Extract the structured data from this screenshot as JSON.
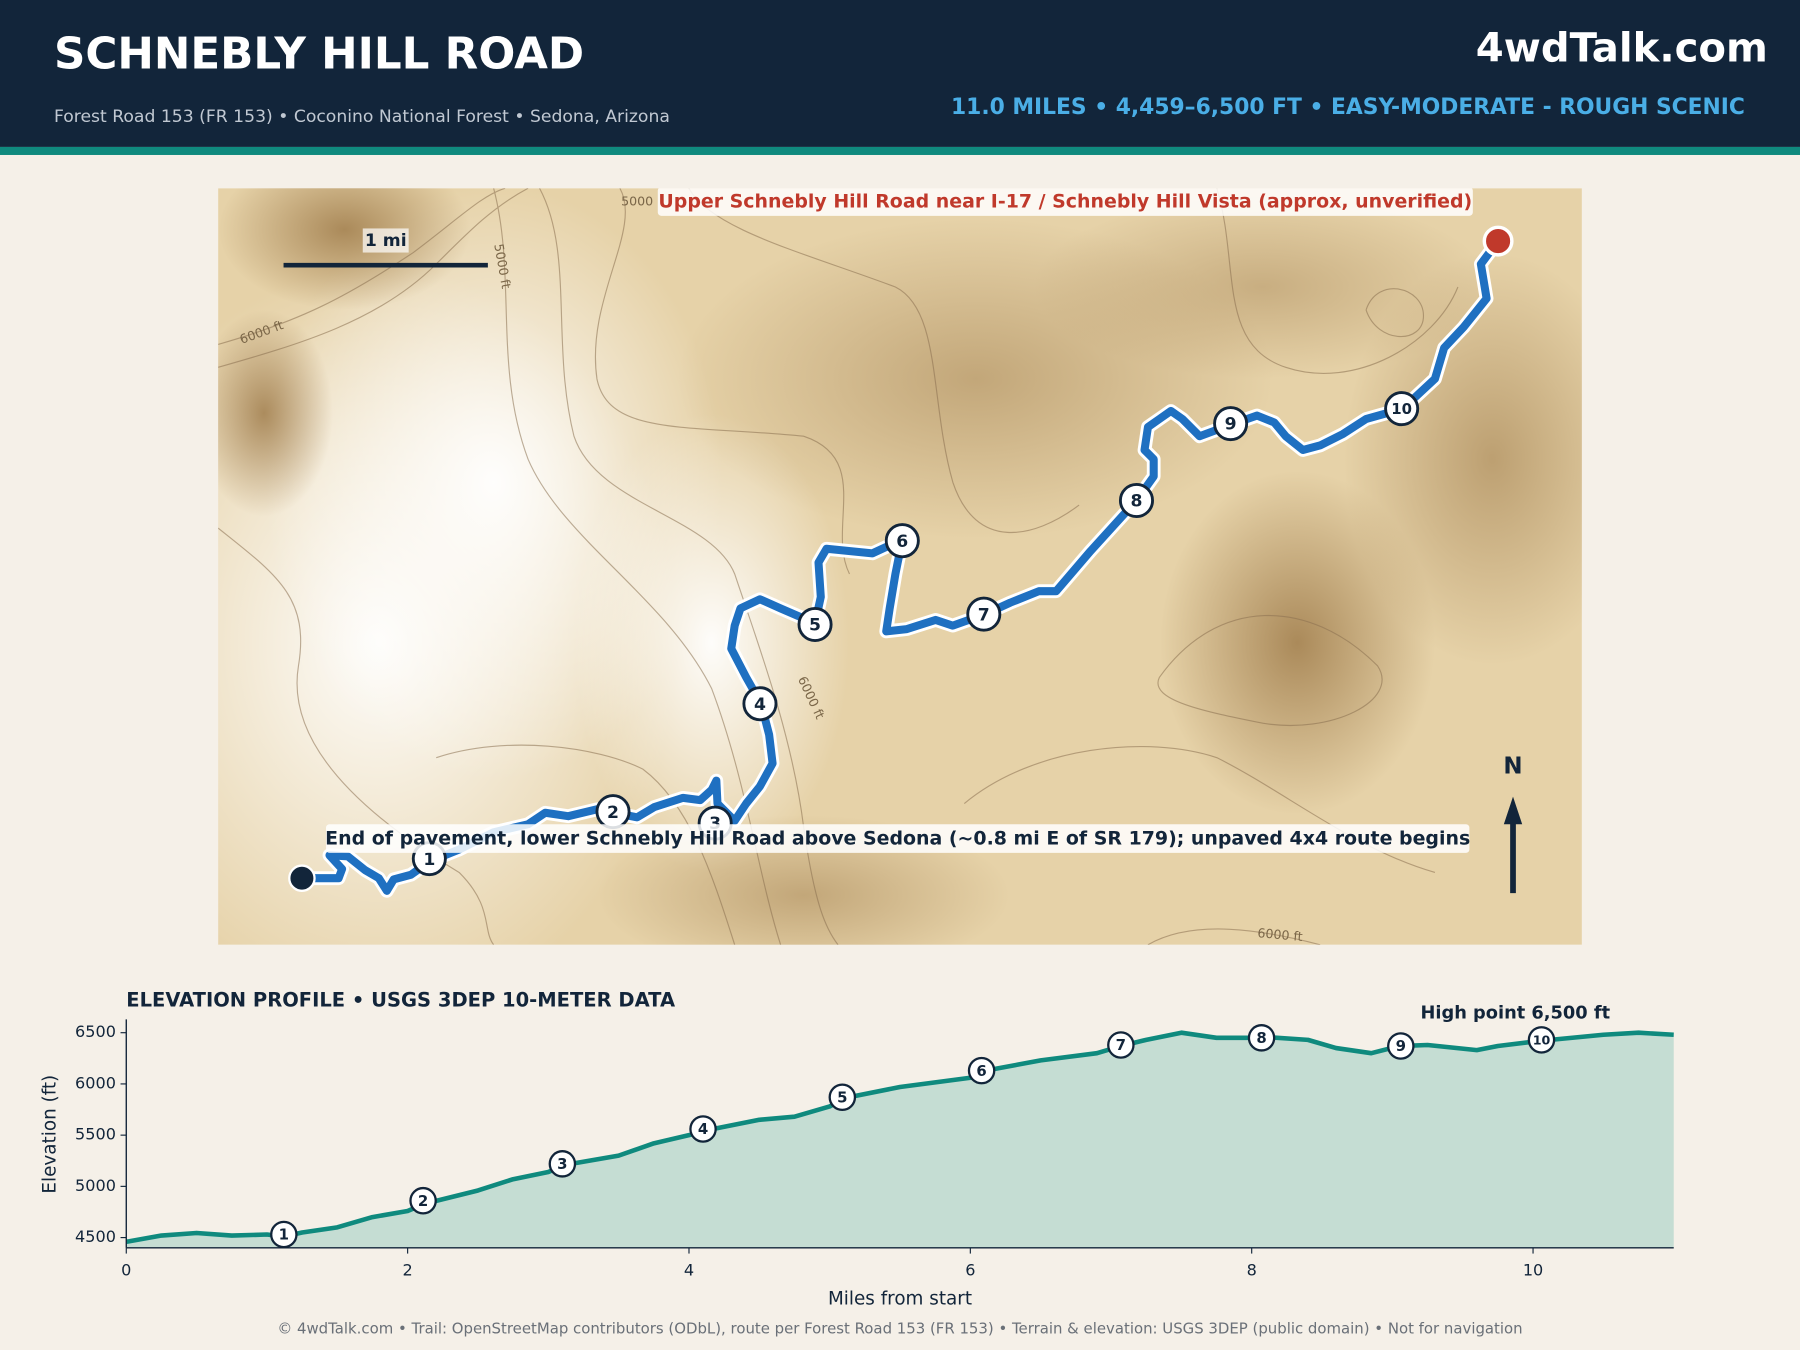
{
  "header": {
    "title": "SCHNEBLY HILL ROAD",
    "subtitle": "Forest Road 153 (FR 153)  •  Coconino National Forest  •  Sedona, Arizona",
    "brand": "4wdTalk.com",
    "stats": "11.0 MILES  •  4,459–6,500 FT  •  EASY-MODERATE - ROUGH SCENIC"
  },
  "map": {
    "end_label": "Upper Schnebly Hill Road near I-17 / Schnebly Hill Vista (approx, unverified)",
    "start_label": "End of pavement, lower Schnebly Hill Road above Sedona (~0.8 mi E of SR 179); unpaved 4x4 route begins",
    "scale_label": "1 mi",
    "north_label": "N",
    "contour_labels": [
      "5000",
      "5000 ft",
      "6000 ft",
      "6000 ft",
      "6000 ft"
    ],
    "waypoint_labels": [
      "1",
      "2",
      "3",
      "4",
      "5",
      "6",
      "7",
      "8",
      "9",
      "10"
    ]
  },
  "chart_data": {
    "type": "area",
    "title": "ELEVATION PROFILE  •  USGS 3DEP 10-METER DATA",
    "annotation": "High point 6,500 ft",
    "xlabel": "Miles from start",
    "ylabel": "Elevation (ft)",
    "x": [
      0,
      0.25,
      0.5,
      0.75,
      1.0,
      1.12,
      1.25,
      1.5,
      1.75,
      2.0,
      2.12,
      2.5,
      2.75,
      3.0,
      3.12,
      3.5,
      3.75,
      4.0,
      4.1,
      4.5,
      4.75,
      5.0,
      5.1,
      5.5,
      6.0,
      6.07,
      6.5,
      6.9,
      7.07,
      7.25,
      7.5,
      7.75,
      8.0,
      8.07,
      8.4,
      8.6,
      8.85,
      9.05,
      9.25,
      9.6,
      9.75,
      10.05,
      10.5,
      10.75,
      11.0
    ],
    "values": [
      4459,
      4520,
      4545,
      4520,
      4530,
      4510,
      4550,
      4600,
      4700,
      4760,
      4830,
      4960,
      5070,
      5140,
      5210,
      5300,
      5420,
      5500,
      5540,
      5650,
      5680,
      5780,
      5860,
      5970,
      6060,
      6120,
      6230,
      6300,
      6370,
      6430,
      6500,
      6450,
      6450,
      6460,
      6430,
      6350,
      6300,
      6370,
      6380,
      6330,
      6370,
      6420,
      6480,
      6500,
      6480
    ],
    "color": "#0f8a7e",
    "fill_color": "#c5ddd3",
    "xlim": [
      0,
      11
    ],
    "ylim": [
      4400,
      6630
    ],
    "xticks": [
      0,
      2,
      4,
      6,
      8,
      10
    ],
    "yticks": [
      4500,
      5000,
      5500,
      6000,
      6500
    ],
    "markers": {
      "x": [
        1.12,
        2.11,
        3.1,
        4.1,
        5.09,
        6.08,
        7.07,
        8.07,
        9.06,
        10.06
      ],
      "values": [
        4530,
        4860,
        5220,
        5560,
        5870,
        6130,
        6380,
        6450,
        6370,
        6430
      ],
      "labels": [
        "1",
        "2",
        "3",
        "4",
        "5",
        "6",
        "7",
        "8",
        "9",
        "10"
      ]
    }
  },
  "footer": "© 4wdTalk.com  •  Trail: OpenStreetMap contributors (ODbL), route per Forest Road 153 (FR 153)  •  Terrain & elevation: USGS 3DEP (public domain)  •  Not for navigation"
}
